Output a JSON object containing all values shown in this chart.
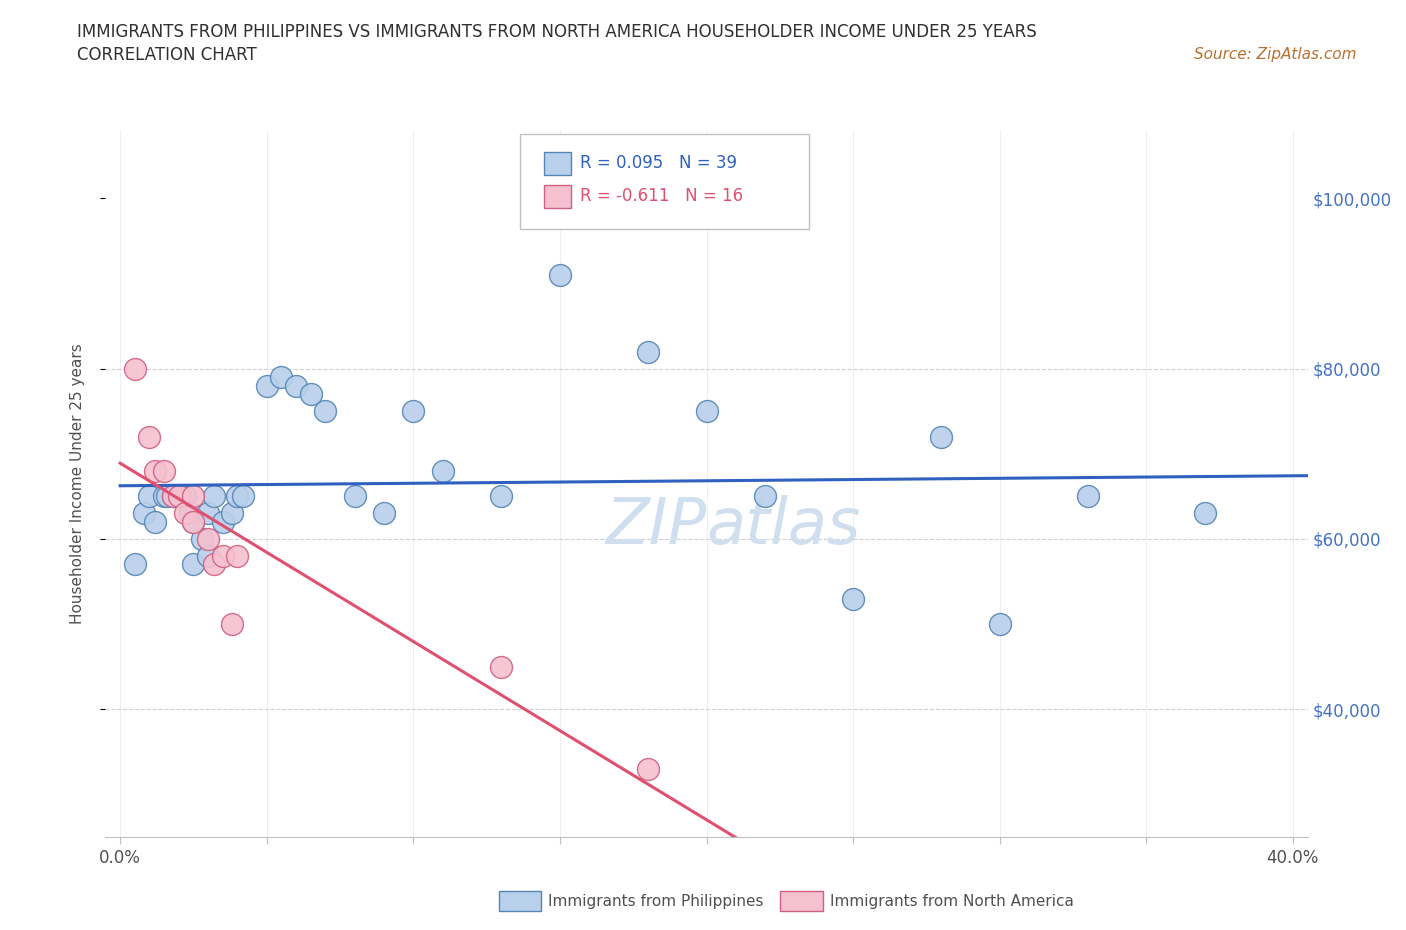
{
  "title_line1": "IMMIGRANTS FROM PHILIPPINES VS IMMIGRANTS FROM NORTH AMERICA HOUSEHOLDER INCOME UNDER 25 YEARS",
  "title_line2": "CORRELATION CHART",
  "source_text": "Source: ZipAtlas.com",
  "ylabel": "Householder Income Under 25 years",
  "xlim": [
    -0.005,
    0.405
  ],
  "ylim": [
    25000,
    108000
  ],
  "xticks": [
    0.0,
    0.05,
    0.1,
    0.15,
    0.2,
    0.25,
    0.3,
    0.35,
    0.4
  ],
  "xticklabels": [
    "0.0%",
    "",
    "",
    "",
    "",
    "",
    "",
    "",
    "40.0%"
  ],
  "ytick_positions": [
    40000,
    60000,
    80000,
    100000
  ],
  "ytick_labels": [
    "$40,000",
    "$60,000",
    "$80,000",
    "$100,000"
  ],
  "hline_y1": 80000,
  "hline_y2": 60000,
  "hline_y3": 40000,
  "philippines_color": "#b8d0ea",
  "philippines_edge": "#5585b5",
  "northamerica_color": "#f5c0d0",
  "northamerica_edge": "#d06080",
  "trendline_philippines_color": "#3060c0",
  "trendline_northamerica_solid": "#e05070",
  "trendline_northamerica_dashed": "#e0b0bc",
  "watermark_color": "#d0dff0",
  "legend_r1_color": "#3060c0",
  "legend_r2_color": "#e05070",
  "legend_r1": "R = 0.095",
  "legend_n1": "N = 39",
  "legend_r2": "R = -0.611",
  "legend_n2": "N = 16",
  "legend_label1": "Immigrants from Philippines",
  "legend_label2": "Immigrants from North America",
  "philippines_x": [
    0.005,
    0.008,
    0.01,
    0.012,
    0.015,
    0.016,
    0.018,
    0.02,
    0.022,
    0.024,
    0.025,
    0.025,
    0.028,
    0.03,
    0.03,
    0.032,
    0.035,
    0.038,
    0.04,
    0.042,
    0.05,
    0.055,
    0.06,
    0.065,
    0.07,
    0.08,
    0.09,
    0.1,
    0.11,
    0.13,
    0.15,
    0.18,
    0.2,
    0.22,
    0.25,
    0.28,
    0.3,
    0.33,
    0.37
  ],
  "philippines_y": [
    57000,
    63000,
    65000,
    62000,
    65000,
    65000,
    65000,
    65000,
    65000,
    63000,
    62000,
    57000,
    60000,
    63000,
    58000,
    65000,
    62000,
    63000,
    65000,
    65000,
    78000,
    79000,
    78000,
    77000,
    75000,
    65000,
    63000,
    75000,
    68000,
    65000,
    91000,
    82000,
    75000,
    65000,
    53000,
    72000,
    50000,
    65000,
    63000
  ],
  "northamerica_x": [
    0.005,
    0.01,
    0.012,
    0.015,
    0.018,
    0.02,
    0.022,
    0.025,
    0.025,
    0.03,
    0.032,
    0.035,
    0.038,
    0.04,
    0.13,
    0.18
  ],
  "northamerica_y": [
    80000,
    72000,
    68000,
    68000,
    65000,
    65000,
    63000,
    65000,
    62000,
    60000,
    57000,
    58000,
    50000,
    58000,
    45000,
    33000
  ],
  "background_color": "#ffffff",
  "title_color": "#303030",
  "source_color": "#b87030",
  "axis_label_color": "#505050",
  "tick_color_right": "#4472c4",
  "grid_dash_color": "#d0d0d0"
}
